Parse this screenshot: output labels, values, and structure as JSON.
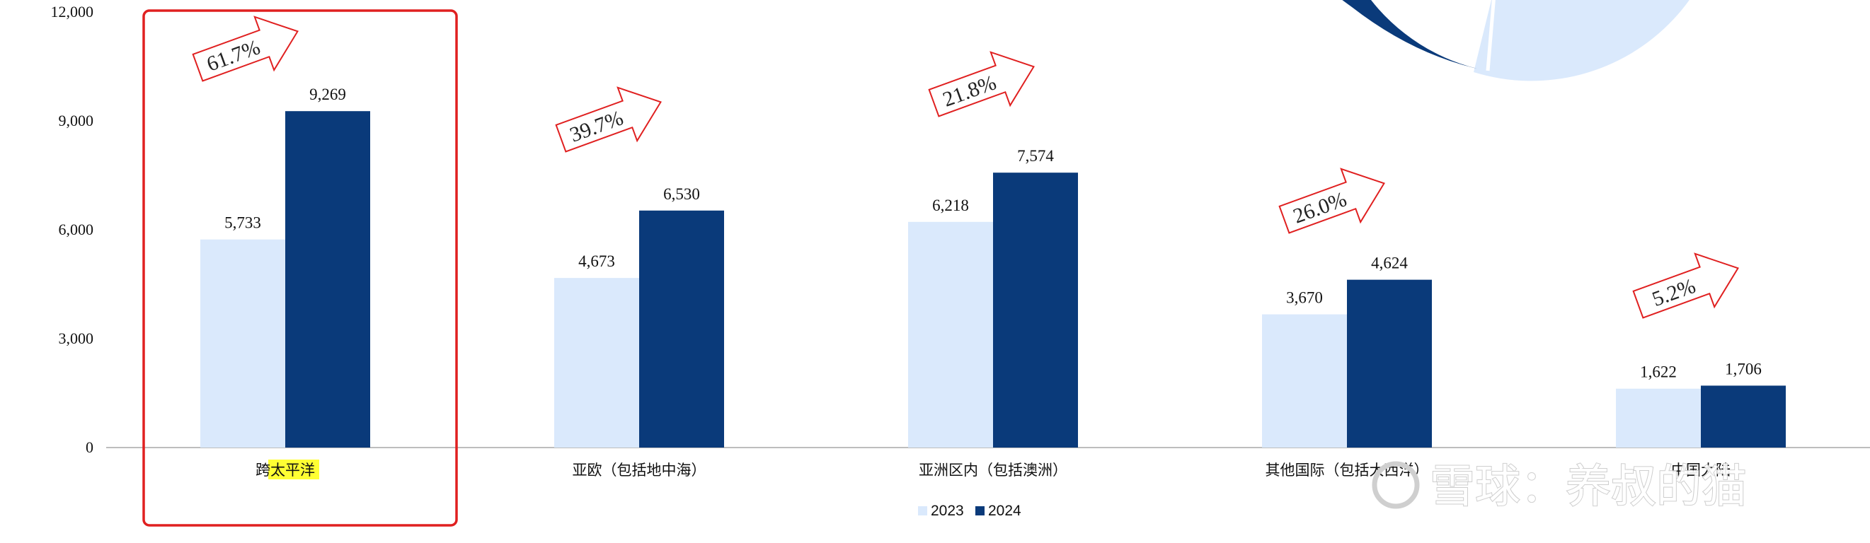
{
  "chart_data": {
    "type": "bar",
    "categories": [
      "跨太平洋",
      "亚欧（包括地中海）",
      "亚洲区内（包括澳洲）",
      "其他国际（包括大西洋）",
      "中国大陆"
    ],
    "series": [
      {
        "name": "2023",
        "values": [
          5733,
          4673,
          6218,
          3670,
          1622
        ]
      },
      {
        "name": "2024",
        "values": [
          9269,
          6530,
          7574,
          4624,
          1706
        ]
      }
    ],
    "growth_annotations": [
      "61.7%",
      "39.7%",
      "21.8%",
      "26.0%",
      "5.2%"
    ],
    "y_ticks": [
      "0",
      "3,000",
      "6,000",
      "9,000",
      "12,000"
    ],
    "data_labels": [
      [
        "5,733",
        "4,673",
        "6,218",
        "3,670",
        "1,622"
      ],
      [
        "9,269",
        "6,530",
        "7,574",
        "4,624",
        "1,706"
      ]
    ],
    "ylim": [
      0,
      12000
    ],
    "grid": false,
    "legend": "bottom-center",
    "highlight_category": "跨太平洋",
    "colors": {
      "series_2023": "#dae9fc",
      "series_2024": "#0a3a7a",
      "highlight_box": "#e02020",
      "arrow": "#e02020",
      "pie_light": "#dae9fc",
      "pie_dark": "#0a3a7a"
    }
  },
  "watermark": "雪球：养叔的猫"
}
